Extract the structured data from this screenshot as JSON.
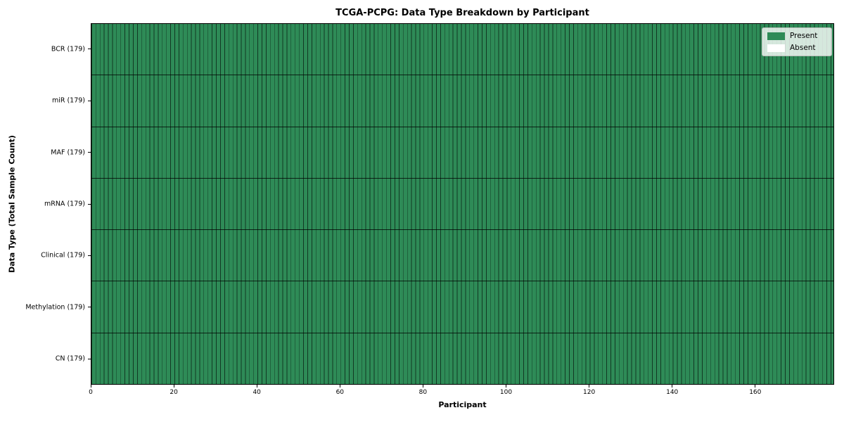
{
  "title": "TCGA-PCPG: Data Type Breakdown by Participant",
  "axes": {
    "x_label": "Participant",
    "y_label": "Data Type (Total Sample Count)",
    "x_ticks": [
      0,
      20,
      40,
      60,
      80,
      100,
      120,
      140,
      160
    ],
    "x_max": 179
  },
  "legend": {
    "items": [
      {
        "label": "Present",
        "color": "#2e8b57"
      },
      {
        "label": "Absent",
        "color": "#ffffff"
      }
    ]
  },
  "chart_data": {
    "type": "heatmap",
    "title": "TCGA-PCPG: Data Type Breakdown by Participant",
    "xlabel": "Participant",
    "ylabel": "Data Type (Total Sample Count)",
    "n_participants": 179,
    "x_ticks": [
      0,
      20,
      40,
      60,
      80,
      100,
      120,
      140,
      160
    ],
    "xlim": [
      0,
      179
    ],
    "legend_position": "upper right",
    "legend_entries": [
      "Present",
      "Absent"
    ],
    "colors": {
      "present": "#2e8b57",
      "absent": "#ffffff",
      "cell_edge": "rgba(0,0,0,0.6)",
      "plot_border": "#000000"
    },
    "rows": [
      {
        "label": "BCR (179)",
        "data_type": "BCR",
        "total_sample_count": 179,
        "present_count": 179,
        "absent_count": 0
      },
      {
        "label": "miR (179)",
        "data_type": "miR",
        "total_sample_count": 179,
        "present_count": 179,
        "absent_count": 0
      },
      {
        "label": "MAF (179)",
        "data_type": "MAF",
        "total_sample_count": 179,
        "present_count": 179,
        "absent_count": 0
      },
      {
        "label": "mRNA (179)",
        "data_type": "mRNA",
        "total_sample_count": 179,
        "present_count": 179,
        "absent_count": 0
      },
      {
        "label": "Clinical (179)",
        "data_type": "Clinical",
        "total_sample_count": 179,
        "present_count": 179,
        "absent_count": 0
      },
      {
        "label": "Methylation (179)",
        "data_type": "Methylation",
        "total_sample_count": 179,
        "present_count": 179,
        "absent_count": 0
      },
      {
        "label": "CN (179)",
        "data_type": "CN",
        "total_sample_count": 179,
        "present_count": 179,
        "absent_count": 0
      }
    ],
    "note": "Every cell is Present (green) for all 179 participants across all 7 data types"
  }
}
